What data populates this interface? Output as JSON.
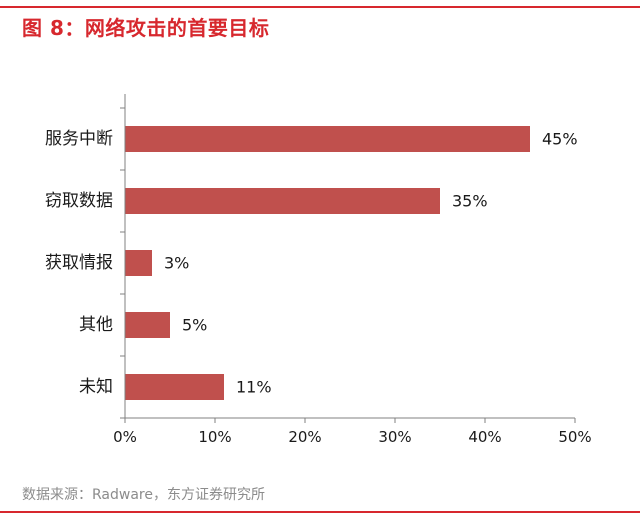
{
  "header": {
    "title": "图 8：网络攻击的首要目标"
  },
  "footer": {
    "source": "数据来源：Radware，东方证券研究所"
  },
  "colors": {
    "accent": "#d7282e",
    "bar": "#c0504d",
    "axis": "#808080",
    "source_text": "#8c8c8c"
  },
  "chart_data": {
    "type": "bar",
    "orientation": "horizontal",
    "categories": [
      "服务中断",
      "窃取数据",
      "获取情报",
      "其他",
      "未知"
    ],
    "values": [
      45,
      35,
      3,
      5,
      11
    ],
    "value_labels": [
      "45%",
      "35%",
      "3%",
      "5%",
      "11%"
    ],
    "xlim": [
      0,
      50
    ],
    "x_ticks": [
      0,
      10,
      20,
      30,
      40,
      50
    ],
    "x_tick_labels": [
      "0%",
      "10%",
      "20%",
      "30%",
      "40%",
      "50%"
    ],
    "grid": false,
    "legend": "none"
  }
}
